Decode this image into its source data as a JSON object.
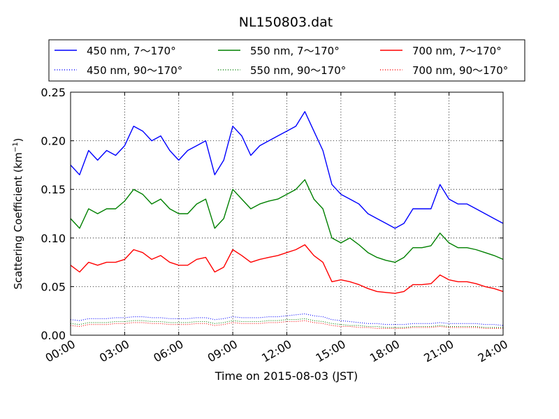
{
  "chart_data": {
    "type": "line",
    "title": "NL150803.dat",
    "xlabel": "Time on 2015-08-03 (JST)",
    "ylabel": "Scattering Coefficient (km",
    "ylabel_sup": "−1",
    "ylabel_tail": ")",
    "xlim": [
      0,
      24
    ],
    "ylim": [
      0,
      0.25
    ],
    "grid": true,
    "legend_position": "top",
    "x_ticks": [
      {
        "value": 0,
        "label": "00:00"
      },
      {
        "value": 3,
        "label": "03:00"
      },
      {
        "value": 6,
        "label": "06:00"
      },
      {
        "value": 9,
        "label": "09:00"
      },
      {
        "value": 12,
        "label": "12:00"
      },
      {
        "value": 15,
        "label": "15:00"
      },
      {
        "value": 18,
        "label": "18:00"
      },
      {
        "value": 21,
        "label": "21:00"
      },
      {
        "value": 24,
        "label": "24:00"
      }
    ],
    "y_ticks": [
      {
        "value": 0.0,
        "label": "0.00"
      },
      {
        "value": 0.05,
        "label": "0.05"
      },
      {
        "value": 0.1,
        "label": "0.10"
      },
      {
        "value": 0.15,
        "label": "0.15"
      },
      {
        "value": 0.2,
        "label": "0.20"
      },
      {
        "value": 0.25,
        "label": "0.25"
      }
    ],
    "x": [
      0,
      0.5,
      1,
      1.5,
      2,
      2.5,
      3,
      3.5,
      4,
      4.5,
      5,
      5.5,
      6,
      6.5,
      7,
      7.5,
      8,
      8.5,
      9,
      9.5,
      10,
      10.5,
      11,
      11.5,
      12,
      12.5,
      13,
      13.5,
      14,
      14.5,
      15,
      15.5,
      16,
      16.5,
      17,
      17.5,
      18,
      18.5,
      19,
      19.5,
      20,
      20.5,
      21,
      21.5,
      22,
      22.5,
      23,
      23.5,
      24
    ],
    "series": [
      {
        "name": "450 nm, 7～170°",
        "color": "#0000ff",
        "style": "solid",
        "values": [
          0.175,
          0.165,
          0.19,
          0.18,
          0.19,
          0.185,
          0.195,
          0.215,
          0.21,
          0.2,
          0.205,
          0.19,
          0.18,
          0.19,
          0.195,
          0.2,
          0.165,
          0.18,
          0.215,
          0.205,
          0.185,
          0.195,
          0.2,
          0.205,
          0.21,
          0.215,
          0.23,
          0.21,
          0.19,
          0.155,
          0.145,
          0.14,
          0.135,
          0.125,
          0.12,
          0.115,
          0.11,
          0.115,
          0.13,
          0.13,
          0.13,
          0.155,
          0.14,
          0.135,
          0.135,
          0.13,
          0.125,
          0.12,
          0.115
        ]
      },
      {
        "name": "550 nm, 7～170°",
        "color": "#008000",
        "style": "solid",
        "values": [
          0.12,
          0.11,
          0.13,
          0.125,
          0.13,
          0.13,
          0.138,
          0.15,
          0.145,
          0.135,
          0.14,
          0.13,
          0.125,
          0.125,
          0.135,
          0.14,
          0.11,
          0.12,
          0.15,
          0.14,
          0.13,
          0.135,
          0.138,
          0.14,
          0.145,
          0.15,
          0.16,
          0.14,
          0.13,
          0.1,
          0.095,
          0.1,
          0.093,
          0.085,
          0.08,
          0.077,
          0.075,
          0.08,
          0.09,
          0.09,
          0.092,
          0.105,
          0.095,
          0.09,
          0.09,
          0.088,
          0.085,
          0.082,
          0.078
        ]
      },
      {
        "name": "700 nm, 7～170°",
        "color": "#ff0000",
        "style": "solid",
        "values": [
          0.072,
          0.065,
          0.075,
          0.072,
          0.075,
          0.075,
          0.078,
          0.088,
          0.085,
          0.078,
          0.082,
          0.075,
          0.072,
          0.072,
          0.078,
          0.08,
          0.065,
          0.07,
          0.088,
          0.082,
          0.075,
          0.078,
          0.08,
          0.082,
          0.085,
          0.088,
          0.093,
          0.082,
          0.075,
          0.055,
          0.057,
          0.055,
          0.052,
          0.048,
          0.045,
          0.044,
          0.043,
          0.045,
          0.052,
          0.052,
          0.053,
          0.062,
          0.057,
          0.055,
          0.055,
          0.053,
          0.05,
          0.048,
          0.045
        ]
      },
      {
        "name": "450 nm, 90～170°",
        "color": "#0000ff",
        "style": "dotted",
        "values": [
          0.016,
          0.015,
          0.017,
          0.017,
          0.017,
          0.018,
          0.018,
          0.019,
          0.019,
          0.018,
          0.018,
          0.017,
          0.017,
          0.017,
          0.018,
          0.018,
          0.016,
          0.017,
          0.019,
          0.018,
          0.018,
          0.018,
          0.019,
          0.019,
          0.02,
          0.021,
          0.022,
          0.02,
          0.019,
          0.016,
          0.015,
          0.014,
          0.013,
          0.012,
          0.012,
          0.011,
          0.011,
          0.011,
          0.012,
          0.012,
          0.012,
          0.013,
          0.012,
          0.012,
          0.012,
          0.012,
          0.011,
          0.011,
          0.01
        ]
      },
      {
        "name": "550 nm, 90～170°",
        "color": "#008000",
        "style": "dotted",
        "values": [
          0.012,
          0.011,
          0.013,
          0.013,
          0.013,
          0.014,
          0.014,
          0.015,
          0.015,
          0.014,
          0.014,
          0.013,
          0.013,
          0.013,
          0.014,
          0.014,
          0.012,
          0.013,
          0.015,
          0.014,
          0.014,
          0.014,
          0.015,
          0.015,
          0.016,
          0.016,
          0.017,
          0.015,
          0.014,
          0.012,
          0.011,
          0.01,
          0.01,
          0.009,
          0.009,
          0.008,
          0.008,
          0.008,
          0.009,
          0.009,
          0.009,
          0.01,
          0.009,
          0.009,
          0.009,
          0.009,
          0.008,
          0.008,
          0.008
        ]
      },
      {
        "name": "700 nm, 90～170°",
        "color": "#ff0000",
        "style": "dotted",
        "values": [
          0.01,
          0.009,
          0.011,
          0.011,
          0.011,
          0.012,
          0.012,
          0.013,
          0.013,
          0.012,
          0.012,
          0.011,
          0.011,
          0.011,
          0.012,
          0.012,
          0.01,
          0.011,
          0.013,
          0.012,
          0.012,
          0.012,
          0.013,
          0.013,
          0.014,
          0.014,
          0.015,
          0.013,
          0.012,
          0.01,
          0.009,
          0.009,
          0.008,
          0.008,
          0.007,
          0.007,
          0.007,
          0.007,
          0.008,
          0.008,
          0.008,
          0.009,
          0.008,
          0.008,
          0.008,
          0.008,
          0.007,
          0.007,
          0.007
        ]
      }
    ]
  }
}
